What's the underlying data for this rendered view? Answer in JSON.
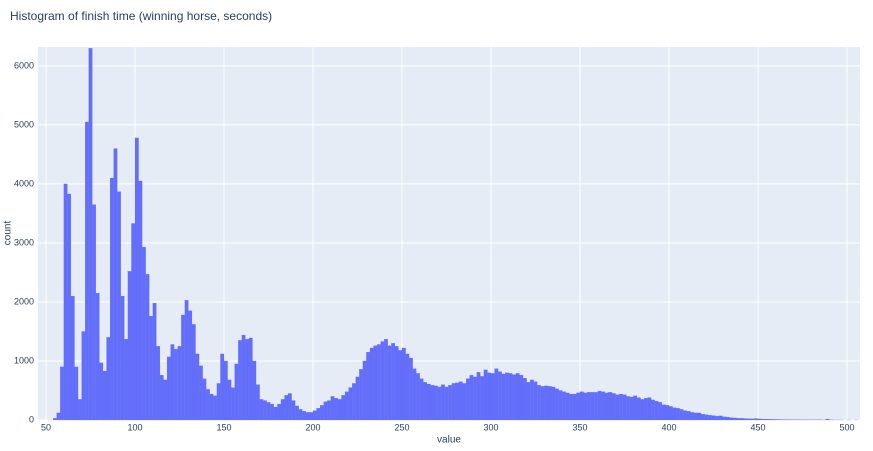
{
  "chart_data": {
    "type": "histogram",
    "title": "Histogram of finish time (winning horse, seconds)",
    "x_label": "value",
    "y_label": "count",
    "color": "#636efa",
    "grid": true,
    "bins": [
      52,
      54,
      56,
      58,
      60,
      62,
      64,
      66,
      68,
      70,
      72,
      74,
      76,
      78,
      80,
      82,
      84,
      86,
      88,
      90,
      92,
      94,
      96,
      98,
      100,
      102,
      104,
      106,
      108,
      110,
      112,
      114,
      116,
      118,
      120,
      122,
      124,
      126,
      128,
      130,
      132,
      134,
      136,
      138,
      140,
      142,
      144,
      146,
      148,
      150,
      152,
      154,
      156,
      158,
      160,
      162,
      164,
      166,
      168,
      170,
      172,
      174,
      176,
      178,
      180,
      182,
      184,
      186,
      188,
      190,
      192,
      194,
      196,
      198,
      200,
      202,
      204,
      206,
      208,
      210,
      212,
      214,
      216,
      218,
      220,
      222,
      224,
      226,
      228,
      230,
      232,
      234,
      236,
      238,
      240,
      242,
      244,
      246,
      248,
      250,
      252,
      254,
      256,
      258,
      260,
      262,
      264,
      266,
      268,
      270,
      272,
      274,
      276,
      278,
      280,
      282,
      284,
      286,
      288,
      290,
      292,
      294,
      296,
      298,
      300,
      302,
      304,
      306,
      308,
      310,
      312,
      314,
      316,
      318,
      320,
      322,
      324,
      326,
      328,
      330,
      332,
      334,
      336,
      338,
      340,
      342,
      344,
      346,
      348,
      350,
      352,
      354,
      356,
      358,
      360,
      362,
      364,
      366,
      368,
      370,
      372,
      374,
      376,
      378,
      380,
      382,
      384,
      386,
      388,
      390,
      392,
      394,
      396,
      398,
      400,
      402,
      404,
      406,
      408,
      410,
      412,
      414,
      416,
      418,
      420,
      422,
      424,
      426,
      428,
      430,
      432,
      434,
      436,
      438,
      440,
      442,
      444,
      446,
      448,
      450,
      452,
      454,
      456,
      458,
      460,
      462,
      464,
      466,
      468,
      470,
      472,
      474,
      476,
      478,
      480,
      482,
      484,
      486,
      488,
      490,
      492,
      494,
      496,
      498,
      500,
      502,
      504,
      506
    ],
    "values": [
      0,
      30,
      120,
      900,
      4000,
      3830,
      2100,
      900,
      350,
      1500,
      5050,
      6300,
      3650,
      2150,
      970,
      830,
      1400,
      4100,
      4600,
      3870,
      2100,
      1370,
      2520,
      3330,
      4780,
      4050,
      2930,
      2470,
      1760,
      1980,
      1250,
      760,
      680,
      1070,
      1280,
      1200,
      1250,
      1780,
      2030,
      1850,
      1620,
      1120,
      920,
      700,
      520,
      440,
      410,
      620,
      1120,
      1000,
      680,
      550,
      950,
      1350,
      1440,
      1370,
      1390,
      1000,
      600,
      350,
      330,
      300,
      270,
      220,
      270,
      350,
      420,
      450,
      330,
      240,
      180,
      150,
      130,
      130,
      160,
      200,
      250,
      310,
      330,
      400,
      370,
      350,
      420,
      480,
      550,
      620,
      730,
      860,
      1000,
      1150,
      1220,
      1260,
      1280,
      1330,
      1370,
      1260,
      1300,
      1250,
      1180,
      1220,
      1120,
      1050,
      870,
      790,
      700,
      640,
      610,
      590,
      580,
      560,
      600,
      560,
      590,
      620,
      630,
      650,
      620,
      700,
      760,
      730,
      810,
      740,
      850,
      800,
      790,
      870,
      820,
      780,
      800,
      790,
      770,
      790,
      760,
      710,
      640,
      680,
      650,
      590,
      570,
      580,
      570,
      560,
      530,
      500,
      480,
      460,
      440,
      440,
      460,
      480,
      460,
      470,
      470,
      470,
      490,
      480,
      460,
      470,
      450,
      430,
      440,
      430,
      400,
      390,
      410,
      380,
      350,
      370,
      380,
      340,
      320,
      300,
      260,
      250,
      230,
      210,
      200,
      180,
      160,
      150,
      130,
      120,
      120,
      100,
      90,
      80,
      75,
      65,
      70,
      55,
      50,
      40,
      35,
      30,
      28,
      25,
      22,
      20,
      25,
      18,
      16,
      15,
      12,
      10,
      9,
      8,
      7,
      6,
      5,
      5,
      4,
      3,
      3,
      3,
      2,
      2,
      2,
      1,
      15,
      2,
      1,
      1,
      1,
      0,
      1,
      0,
      1
    ],
    "xlim": [
      45.5,
      507.3
    ],
    "ylim": [
      0,
      6320
    ],
    "xticks": [
      50,
      100,
      150,
      200,
      250,
      300,
      350,
      400,
      450,
      500
    ],
    "yticks": [
      0,
      1000,
      2000,
      3000,
      4000,
      5000,
      6000
    ]
  }
}
